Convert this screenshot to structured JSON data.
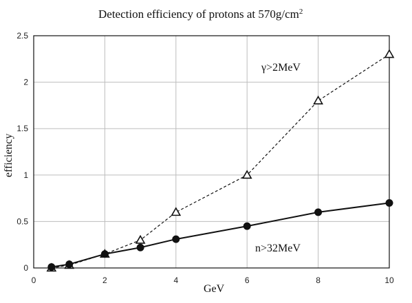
{
  "chart_data": {
    "type": "line",
    "title": "Detection efficiency of protons at 570g/cm",
    "title_superscript": "2",
    "xlabel": "GeV",
    "ylabel": "efficiency",
    "xlim": [
      0,
      10
    ],
    "ylim": [
      0,
      2.5
    ],
    "x_ticks": [
      0,
      2,
      4,
      6,
      8,
      10
    ],
    "x_tick_labels": [
      "0",
      "2",
      "4",
      "6",
      "8",
      "10"
    ],
    "y_ticks": [
      0,
      0.5,
      1,
      1.5,
      2,
      2.5
    ],
    "y_tick_labels": [
      "0",
      "0.5",
      "1",
      "1.5",
      "2",
      "2.5"
    ],
    "grid": true,
    "series": [
      {
        "name": "γ>2MeV",
        "marker": "open-triangle",
        "line_style": "dashed",
        "x": [
          0.5,
          1,
          2,
          3,
          4,
          6,
          8,
          10
        ],
        "y": [
          0.0,
          0.03,
          0.15,
          0.3,
          0.6,
          1.0,
          1.8,
          2.3
        ]
      },
      {
        "name": "n>32MeV",
        "marker": "filled-circle",
        "line_style": "solid",
        "x": [
          0.5,
          1,
          2,
          3,
          4,
          6,
          8,
          10
        ],
        "y": [
          0.01,
          0.04,
          0.15,
          0.22,
          0.31,
          0.45,
          0.6,
          0.7
        ]
      }
    ]
  }
}
